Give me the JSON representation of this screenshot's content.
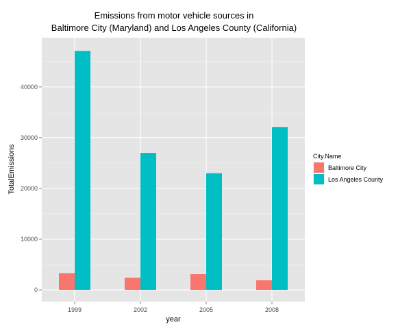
{
  "chart_data": {
    "type": "bar",
    "title_lines": [
      "Emissions from motor vehicle sources in",
      "Baltimore City (Maryland) and Los Angeles County (California)"
    ],
    "xlabel": "year",
    "ylabel": "TotalEmissions",
    "categories": [
      "1999",
      "2002",
      "2005",
      "2008"
    ],
    "series": [
      {
        "name": "Baltimore City",
        "color": "#f8766d",
        "values": [
          3300,
          2400,
          3100,
          1900
        ]
      },
      {
        "name": "Los Angeles County",
        "color": "#00bfc4",
        "values": [
          47100,
          27000,
          23000,
          32100
        ]
      }
    ],
    "yticks": [
      0,
      10000,
      20000,
      30000,
      40000
    ],
    "ylim": [
      -2300,
      49700
    ],
    "grid": true,
    "legend": {
      "title": "City.Name",
      "position": "right"
    },
    "background": "#e5e5e5"
  }
}
